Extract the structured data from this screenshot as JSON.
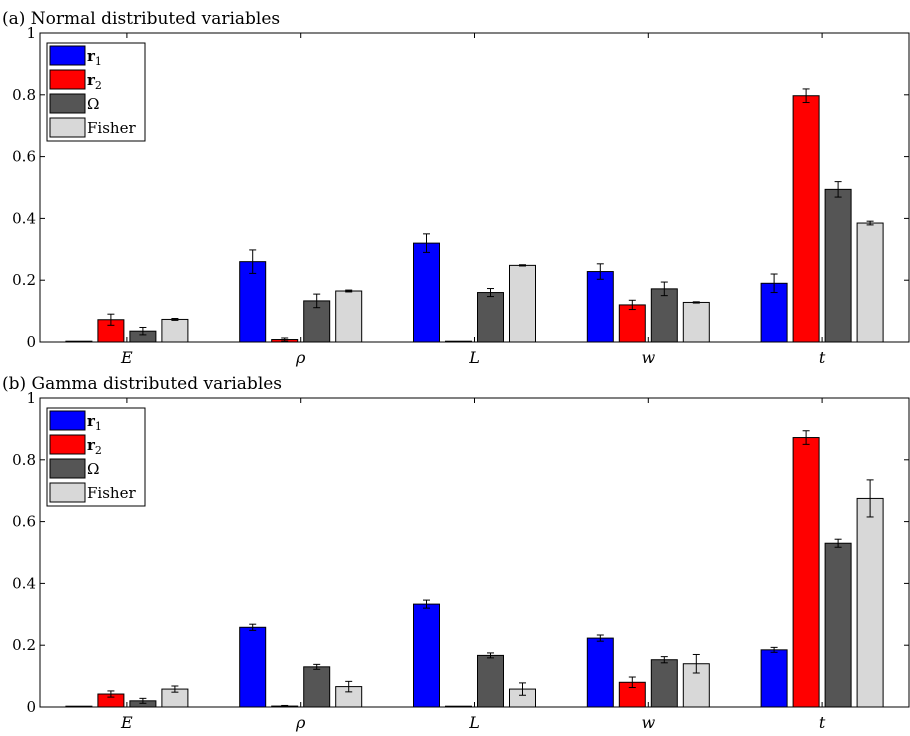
{
  "chart_data": [
    {
      "type": "bar",
      "title": "(a) Normal distributed variables",
      "xlabel": "",
      "ylabel": "",
      "ylim": [
        0,
        1
      ],
      "yticks": [
        "0",
        "0.2",
        "0.4",
        "0.6",
        "0.8",
        "1"
      ],
      "categories": [
        "E",
        "ρ",
        "L",
        "w",
        "t"
      ],
      "legend": {
        "placement": "top-left"
      },
      "error_bars": true,
      "series": [
        {
          "name": "r1",
          "color": "#0000ff",
          "values": [
            0.0,
            0.26,
            0.32,
            0.228,
            0.19
          ],
          "errors": [
            0.0,
            0.038,
            0.03,
            0.025,
            0.03
          ]
        },
        {
          "name": "r2",
          "color": "#ff0000",
          "values": [
            0.072,
            0.008,
            0.0,
            0.12,
            0.797
          ],
          "errors": [
            0.018,
            0.005,
            0.0,
            0.015,
            0.022
          ]
        },
        {
          "name": "Ω",
          "color": "#555555",
          "values": [
            0.035,
            0.133,
            0.16,
            0.172,
            0.494
          ],
          "errors": [
            0.012,
            0.022,
            0.013,
            0.022,
            0.025
          ]
        },
        {
          "name": "Fisher",
          "color": "#d8d8d8",
          "values": [
            0.073,
            0.165,
            0.248,
            0.128,
            0.385
          ],
          "errors": [
            0.003,
            0.003,
            0.002,
            0.002,
            0.006
          ]
        }
      ]
    },
    {
      "type": "bar",
      "title": "(b) Gamma distributed variables",
      "xlabel": "",
      "ylabel": "",
      "ylim": [
        0,
        1
      ],
      "yticks": [
        "0",
        "0.2",
        "0.4",
        "0.6",
        "0.8",
        "1"
      ],
      "categories": [
        "E",
        "ρ",
        "L",
        "w",
        "t"
      ],
      "legend": {
        "placement": "top-left"
      },
      "error_bars": true,
      "series": [
        {
          "name": "r1",
          "color": "#0000ff",
          "values": [
            0.0,
            0.258,
            0.333,
            0.223,
            0.185
          ],
          "errors": [
            0.0,
            0.01,
            0.013,
            0.01,
            0.008
          ]
        },
        {
          "name": "r2",
          "color": "#ff0000",
          "values": [
            0.042,
            0.003,
            0.0,
            0.08,
            0.872
          ],
          "errors": [
            0.01,
            0.002,
            0.0,
            0.017,
            0.022
          ]
        },
        {
          "name": "Ω",
          "color": "#555555",
          "values": [
            0.02,
            0.13,
            0.167,
            0.153,
            0.53
          ],
          "errors": [
            0.008,
            0.008,
            0.008,
            0.01,
            0.013
          ]
        },
        {
          "name": "Fisher",
          "color": "#d8d8d8",
          "values": [
            0.058,
            0.066,
            0.058,
            0.14,
            0.675
          ],
          "errors": [
            0.01,
            0.017,
            0.02,
            0.03,
            0.06
          ]
        }
      ]
    }
  ]
}
